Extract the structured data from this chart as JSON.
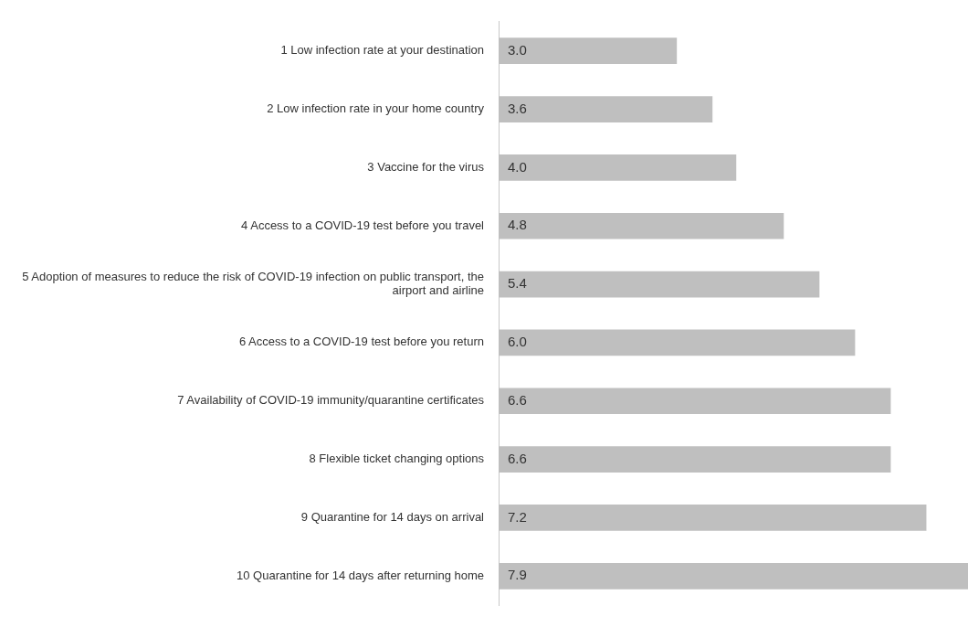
{
  "chart_data": {
    "type": "bar",
    "orientation": "horizontal",
    "categories": [
      "1 Low infection rate at your destination",
      "2 Low infection rate in your home country",
      "3 Vaccine for the virus",
      "4 Access to a COVID-19 test before you travel",
      "5 Adoption of measures to reduce the risk of COVID-19 infection on public transport, the airport and airline",
      "6 Access to a COVID-19 test before you return",
      "7 Availability of COVID-19 immunity/quarantine certificates",
      "8 Flexible ticket changing options",
      "9 Quarantine for 14 days on arrival",
      "10 Quarantine for 14 days after returning home"
    ],
    "values": [
      3.0,
      3.6,
      4.0,
      4.8,
      5.4,
      6.0,
      6.6,
      6.6,
      7.2,
      7.9
    ],
    "value_labels": [
      "3.0",
      "3.6",
      "4.0",
      "4.8",
      "5.4",
      "6.0",
      "6.6",
      "6.6",
      "7.2",
      "7.9"
    ],
    "color": "#bfbfbf",
    "grid": false,
    "legend": false
  }
}
